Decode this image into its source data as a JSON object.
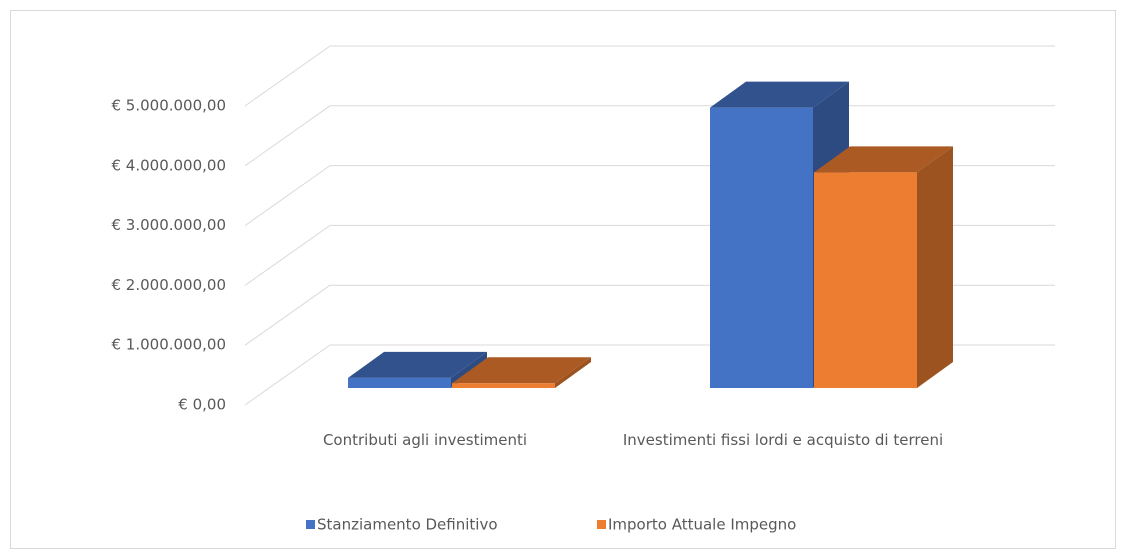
{
  "chart_data": {
    "type": "bar3d",
    "categories": [
      "Contributi agli investimenti",
      "Investimenti fissi lordi e acquisto di terreni"
    ],
    "series": [
      {
        "name": "Stanziamento Definitivo",
        "color": "#4472c4",
        "values": [
          170000,
          4720000
        ]
      },
      {
        "name": "Importo Attuale Impegno",
        "color": "#ed7d31",
        "values": [
          80000,
          3630000
        ]
      }
    ],
    "ylim": [
      0,
      5000000
    ],
    "yticks": [
      {
        "value": 0,
        "label": "€ 0,00"
      },
      {
        "value": 1000000,
        "label": "€ 1.000.000,00"
      },
      {
        "value": 2000000,
        "label": "€ 2.000.000,00"
      },
      {
        "value": 3000000,
        "label": "€ 3.000.000,00"
      },
      {
        "value": 4000000,
        "label": "€ 4.000.000,00"
      },
      {
        "value": 5000000,
        "label": "€ 5.000.000,00"
      }
    ],
    "grid": true,
    "legend": "bottom"
  }
}
